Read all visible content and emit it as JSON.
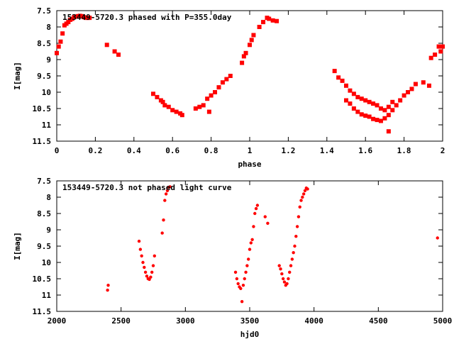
{
  "chart_data": [
    {
      "type": "scatter",
      "title": "153449-5720.3 phased with P=355.0day",
      "xlabel": "phase",
      "ylabel": "I[mag]",
      "xlim": [
        0,
        2
      ],
      "ylim": [
        7.5,
        11.5
      ],
      "y_inverted": true,
      "x_ticks": [
        "0",
        "0.2",
        "0.4",
        "0.6",
        "0.8",
        "1",
        "1.2",
        "1.4",
        "1.6",
        "1.8",
        "2"
      ],
      "y_ticks": [
        "7.5",
        "8",
        "8.5",
        "9",
        "9.5",
        "10",
        "10.5",
        "11",
        "11.5"
      ],
      "marker": "filled-square",
      "color": "#ff0000",
      "x": [
        0.0,
        0.01,
        0.02,
        0.03,
        0.04,
        0.05,
        0.06,
        0.07,
        0.08,
        0.09,
        0.1,
        0.11,
        0.12,
        0.13,
        0.14,
        0.15,
        0.16,
        0.17,
        0.26,
        0.3,
        0.32,
        0.5,
        0.52,
        0.54,
        0.55,
        0.56,
        0.58,
        0.6,
        0.62,
        0.64,
        0.65,
        0.72,
        0.74,
        0.76,
        0.78,
        0.79,
        0.8,
        0.82,
        0.84,
        0.86,
        0.88,
        0.9,
        0.96,
        0.97,
        0.98,
        1.0,
        1.01,
        1.02,
        1.05,
        1.07,
        1.09,
        1.1,
        1.12,
        1.14,
        1.44,
        1.46,
        1.48,
        1.5,
        1.52,
        1.54,
        1.56,
        1.58,
        1.6,
        1.62,
        1.64,
        1.66,
        1.68,
        1.7,
        1.72,
        1.74,
        1.5,
        1.52,
        1.54,
        1.56,
        1.58,
        1.6,
        1.62,
        1.64,
        1.66,
        1.68,
        1.7,
        1.72,
        1.74,
        1.76,
        1.78,
        1.8,
        1.82,
        1.72,
        1.84,
        1.86,
        1.9,
        1.93,
        1.94,
        1.96,
        1.98,
        1.99,
        2.0
      ],
      "y": [
        8.8,
        8.6,
        8.45,
        8.2,
        7.95,
        7.9,
        7.85,
        7.78,
        7.75,
        7.7,
        7.68,
        7.67,
        7.66,
        7.67,
        7.7,
        7.72,
        7.72,
        7.72,
        8.55,
        8.75,
        8.85,
        10.05,
        10.15,
        10.25,
        10.3,
        10.4,
        10.45,
        10.55,
        10.6,
        10.65,
        10.7,
        10.5,
        10.45,
        10.4,
        10.2,
        10.6,
        10.1,
        10.0,
        9.85,
        9.7,
        9.6,
        9.5,
        9.1,
        8.9,
        8.8,
        8.55,
        8.4,
        8.25,
        8.0,
        7.85,
        7.72,
        7.75,
        7.8,
        7.82,
        9.35,
        9.55,
        9.65,
        9.8,
        9.95,
        10.05,
        10.15,
        10.2,
        10.25,
        10.3,
        10.35,
        10.4,
        10.5,
        10.55,
        10.45,
        10.3,
        10.25,
        10.35,
        10.5,
        10.6,
        10.68,
        10.72,
        10.75,
        10.82,
        10.85,
        10.88,
        10.8,
        10.7,
        10.55,
        10.4,
        10.25,
        10.1,
        10.0,
        11.2,
        9.9,
        9.75,
        9.7,
        9.8,
        8.95,
        8.85,
        8.6,
        8.75,
        8.6
      ]
    },
    {
      "type": "scatter",
      "title": "153449-5720.3 not phased light curve",
      "xlabel": "hjd0",
      "ylabel": "I[mag]",
      "xlim": [
        2000,
        5000
      ],
      "ylim": [
        7.5,
        11.5
      ],
      "y_inverted": true,
      "x_ticks": [
        "2000",
        "2500",
        "3000",
        "3500",
        "4000",
        "4500",
        "5000"
      ],
      "y_ticks": [
        "7.5",
        "8",
        "8.5",
        "9",
        "9.5",
        "10",
        "10.5",
        "11",
        "11.5"
      ],
      "marker": "filled-circle",
      "color": "#ff0000",
      "x": [
        2395,
        2400,
        2640,
        2650,
        2660,
        2670,
        2680,
        2690,
        2700,
        2710,
        2720,
        2730,
        2740,
        2750,
        2760,
        2820,
        2830,
        2840,
        2850,
        2860,
        2870,
        2880,
        3390,
        3400,
        3410,
        3420,
        3430,
        3440,
        3450,
        3460,
        3470,
        3480,
        3490,
        3500,
        3510,
        3520,
        3530,
        3540,
        3550,
        3560,
        3620,
        3640,
        3730,
        3740,
        3750,
        3760,
        3770,
        3780,
        3790,
        3800,
        3810,
        3820,
        3830,
        3840,
        3850,
        3860,
        3870,
        3880,
        3890,
        3900,
        3910,
        3920,
        3930,
        3940,
        3950,
        4960
      ],
      "y": [
        10.85,
        10.7,
        9.35,
        9.6,
        9.8,
        10.0,
        10.15,
        10.3,
        10.42,
        10.5,
        10.52,
        10.45,
        10.3,
        10.1,
        9.8,
        9.1,
        8.7,
        8.1,
        7.9,
        7.8,
        7.7,
        7.68,
        10.3,
        10.5,
        10.65,
        10.75,
        10.8,
        11.2,
        10.7,
        10.5,
        10.3,
        10.1,
        9.9,
        9.6,
        9.4,
        9.3,
        8.9,
        8.5,
        8.35,
        8.25,
        8.6,
        8.8,
        10.1,
        10.2,
        10.35,
        10.5,
        10.6,
        10.7,
        10.65,
        10.5,
        10.3,
        10.1,
        9.9,
        9.7,
        9.5,
        9.2,
        8.9,
        8.6,
        8.3,
        8.1,
        8.0,
        7.9,
        7.8,
        7.72,
        7.75,
        9.25
      ]
    }
  ]
}
